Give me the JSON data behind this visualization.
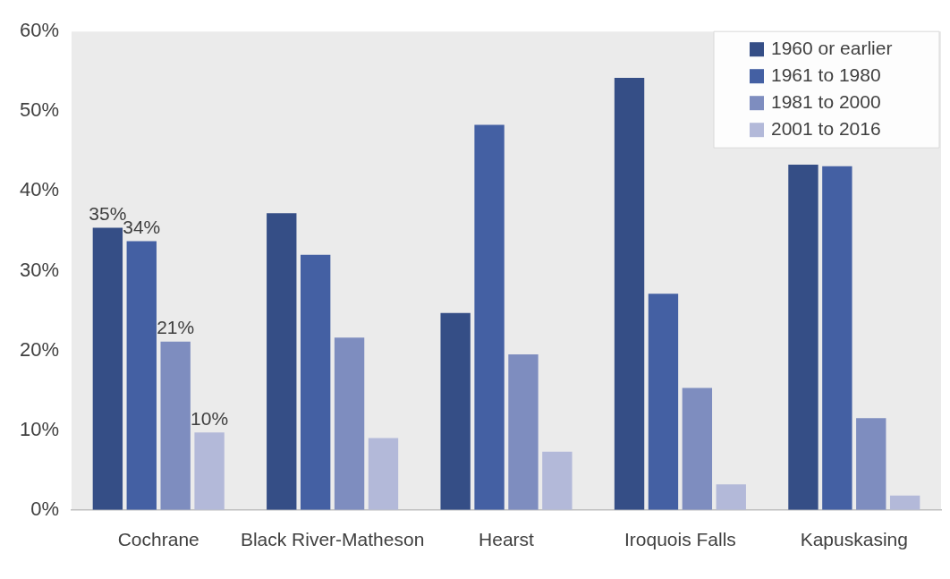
{
  "chart_data": {
    "type": "bar",
    "categories": [
      "Cochrane",
      "Black River-Matheson",
      "Hearst",
      "Iroquois Falls",
      "Kapuskasing"
    ],
    "series": [
      {
        "name": "1960 or earlier",
        "color": "#354e86",
        "values": [
          35.4,
          37.2,
          24.7,
          54.2,
          43.3
        ],
        "value_labels": [
          "35%",
          null,
          null,
          null,
          null
        ]
      },
      {
        "name": "1961 to 1980",
        "color": "#4460a3",
        "values": [
          33.7,
          32.0,
          48.3,
          27.1,
          43.1
        ],
        "value_labels": [
          "34%",
          null,
          null,
          null,
          null
        ]
      },
      {
        "name": "1981 to 2000",
        "color": "#7e8dbf",
        "values": [
          21.1,
          21.6,
          19.5,
          15.3,
          11.5
        ],
        "value_labels": [
          "21%",
          null,
          null,
          null,
          null
        ]
      },
      {
        "name": "2001 to 2016",
        "color": "#b3b9d9",
        "values": [
          9.7,
          9.0,
          7.3,
          3.2,
          1.8
        ],
        "value_labels": [
          "10%",
          null,
          null,
          null,
          null
        ]
      }
    ],
    "ylim": [
      0,
      60
    ],
    "yticks": [
      {
        "value": 0,
        "label": "0%"
      },
      {
        "value": 10,
        "label": "10%"
      },
      {
        "value": 20,
        "label": "20%"
      },
      {
        "value": 30,
        "label": "30%"
      },
      {
        "value": 40,
        "label": "40%"
      },
      {
        "value": 50,
        "label": "50%"
      },
      {
        "value": 60,
        "label": "60%"
      }
    ],
    "grid": false,
    "legend": "top right"
  }
}
